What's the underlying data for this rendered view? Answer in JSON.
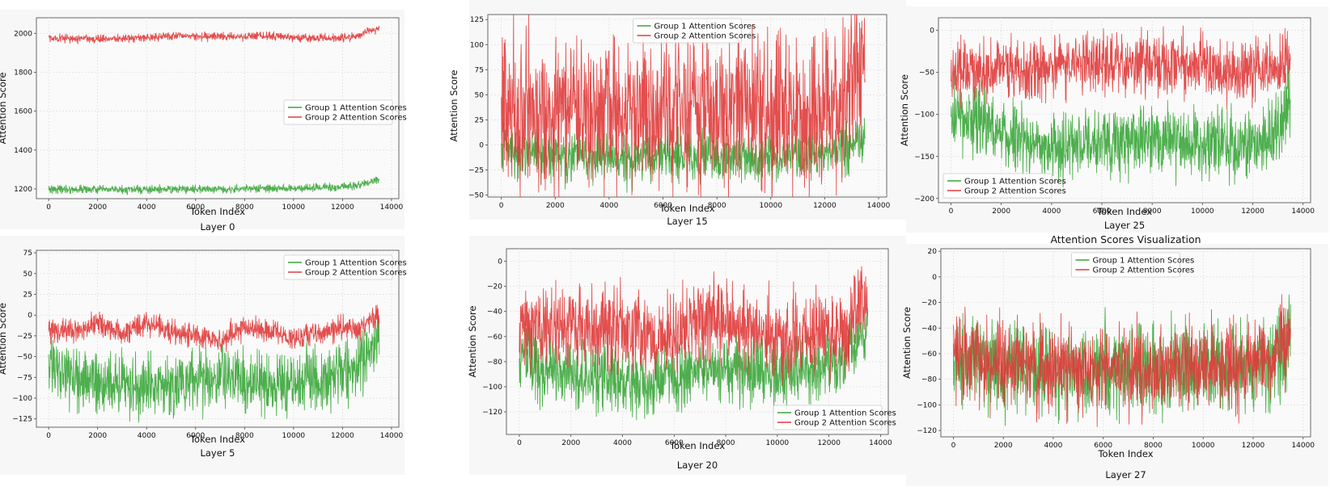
{
  "figure": {
    "background": "#ffffff"
  },
  "series_colors": {
    "group1": "#3aa63a",
    "group2": "#e03b3b"
  },
  "chart_data": [
    {
      "type": "line",
      "key": "layer0",
      "caption": "Layer 0",
      "title": "",
      "xlabel": "Token Index",
      "ylabel": "Attention Score",
      "xlim": [
        -500,
        14300
      ],
      "ylim": [
        1150,
        2080
      ],
      "xticks": [
        0,
        2000,
        4000,
        6000,
        8000,
        10000,
        12000,
        14000
      ],
      "yticks": [
        1200,
        1400,
        1600,
        1800,
        2000
      ],
      "legend": "center-right",
      "series": [
        {
          "name": "Group 1 Attention Scores",
          "color": "#3aa63a",
          "x": [
            0,
            1000,
            2000,
            3000,
            4000,
            5000,
            6000,
            7000,
            8000,
            9000,
            10000,
            11000,
            12000,
            12700,
            13000,
            13500
          ],
          "mean": [
            1200,
            1198,
            1197,
            1195,
            1196,
            1198,
            1200,
            1199,
            1201,
            1202,
            1203,
            1205,
            1210,
            1220,
            1232,
            1248
          ],
          "noise": 10
        },
        {
          "name": "Group 2 Attention Scores",
          "color": "#e03b3b",
          "x": [
            0,
            1000,
            2000,
            3000,
            4000,
            5000,
            6000,
            7000,
            8000,
            9000,
            10000,
            11000,
            12000,
            12700,
            13000,
            13500
          ],
          "mean": [
            1978,
            1973,
            1972,
            1975,
            1979,
            1985,
            1986,
            1982,
            1983,
            1988,
            1978,
            1974,
            1976,
            1990,
            2010,
            2028
          ],
          "noise": 10
        }
      ]
    },
    {
      "type": "line",
      "key": "layer15",
      "caption": "Layer 15",
      "title": "",
      "xlabel": "Token Index",
      "ylabel": "Attention Score",
      "xlim": [
        -500,
        14300
      ],
      "ylim": [
        -52,
        130
      ],
      "xticks": [
        0,
        2000,
        4000,
        6000,
        8000,
        10000,
        12000,
        14000
      ],
      "yticks": [
        -50,
        -25,
        0,
        25,
        50,
        75,
        100,
        125
      ],
      "legend": "top-center",
      "series": [
        {
          "name": "Group 1 Attention Scores",
          "color": "#3aa63a",
          "x": [
            0,
            1000,
            2000,
            3000,
            4000,
            5000,
            6000,
            7000,
            8000,
            9000,
            10000,
            11000,
            12000,
            12700,
            13000,
            13500
          ],
          "mean": [
            -5,
            -8,
            -10,
            -12,
            -15,
            -14,
            -12,
            -10,
            -12,
            -14,
            -12,
            -10,
            -8,
            -5,
            0,
            8
          ],
          "noise": 12
        },
        {
          "name": "Group 2 Attention Scores",
          "color": "#e03b3b",
          "x": [
            0,
            1000,
            2000,
            3000,
            4000,
            5000,
            6000,
            7000,
            8000,
            9000,
            10000,
            11000,
            12000,
            12700,
            13000,
            13500
          ],
          "mean": [
            35,
            38,
            36,
            37,
            35,
            34,
            35,
            36,
            34,
            35,
            33,
            32,
            32,
            30,
            75,
            80
          ],
          "noise": 38
        }
      ]
    },
    {
      "type": "line",
      "key": "layer25",
      "caption": "Layer 25",
      "title": "",
      "xlabel": "Token Index",
      "ylabel": "Attention Score",
      "xlim": [
        -500,
        14300
      ],
      "ylim": [
        -205,
        15
      ],
      "xticks": [
        0,
        2000,
        4000,
        6000,
        8000,
        10000,
        12000,
        14000
      ],
      "yticks": [
        -200,
        -150,
        -100,
        -50,
        0
      ],
      "legend": "bottom-left",
      "series": [
        {
          "name": "Group 1 Attention Scores",
          "color": "#3aa63a",
          "x": [
            0,
            1000,
            2000,
            3000,
            4000,
            5000,
            6000,
            7000,
            8000,
            9000,
            10000,
            11000,
            12000,
            12700,
            13000,
            13500
          ],
          "mean": [
            -95,
            -110,
            -125,
            -130,
            -140,
            -138,
            -132,
            -130,
            -128,
            -135,
            -138,
            -140,
            -142,
            -130,
            -115,
            -85
          ],
          "noise": 20
        },
        {
          "name": "Group 2 Attention Scores",
          "color": "#e03b3b",
          "x": [
            0,
            1000,
            2000,
            3000,
            4000,
            5000,
            6000,
            7000,
            8000,
            9000,
            10000,
            11000,
            12000,
            12700,
            13000,
            13500
          ],
          "mean": [
            -45,
            -48,
            -47,
            -45,
            -42,
            -40,
            -40,
            -39,
            -40,
            -42,
            -45,
            -48,
            -50,
            -48,
            -45,
            -38
          ],
          "noise": 18
        }
      ]
    },
    {
      "type": "line",
      "key": "layer5",
      "caption": "Layer 5",
      "title": "",
      "xlabel": "Token Index",
      "ylabel": "Attention Score",
      "xlim": [
        -500,
        14300
      ],
      "ylim": [
        -135,
        78
      ],
      "xticks": [
        0,
        2000,
        4000,
        6000,
        8000,
        10000,
        12000,
        14000
      ],
      "yticks": [
        -125,
        -100,
        -75,
        -50,
        -25,
        0,
        25,
        50,
        75
      ],
      "legend": "top-right",
      "series": [
        {
          "name": "Group 1 Attention Scores",
          "color": "#3aa63a",
          "x": [
            0,
            1000,
            2000,
            3000,
            4000,
            5000,
            6000,
            7000,
            8000,
            9000,
            10000,
            11000,
            12000,
            12700,
            13000,
            13500
          ],
          "mean": [
            -60,
            -75,
            -80,
            -85,
            -88,
            -82,
            -78,
            -75,
            -80,
            -82,
            -80,
            -78,
            -72,
            -60,
            -45,
            -30
          ],
          "noise": 18
        },
        {
          "name": "Group 2 Attention Scores",
          "color": "#e03b3b",
          "x": [
            0,
            1000,
            2000,
            3000,
            4000,
            5000,
            6000,
            7000,
            8000,
            9000,
            10000,
            11000,
            12000,
            12700,
            13000,
            13500
          ],
          "mean": [
            -20,
            -18,
            -10,
            -22,
            -10,
            -22,
            -25,
            -30,
            -15,
            -20,
            -28,
            -22,
            -15,
            -18,
            -10,
            0
          ],
          "noise": 7
        }
      ]
    },
    {
      "type": "line",
      "key": "layer20",
      "caption": "Layer 20",
      "title": "",
      "xlabel": "Token Index",
      "ylabel": "Attention Score",
      "xlim": [
        -500,
        14300
      ],
      "ylim": [
        -138,
        10
      ],
      "xticks": [
        0,
        2000,
        4000,
        6000,
        8000,
        10000,
        12000,
        14000
      ],
      "yticks": [
        -120,
        -100,
        -80,
        -60,
        -40,
        -20,
        0
      ],
      "legend": "bottom-right",
      "series": [
        {
          "name": "Group 1 Attention Scores",
          "color": "#3aa63a",
          "x": [
            0,
            1000,
            2000,
            3000,
            4000,
            5000,
            6000,
            7000,
            8000,
            9000,
            10000,
            11000,
            12000,
            12700,
            13000,
            13500
          ],
          "mean": [
            -75,
            -85,
            -90,
            -92,
            -95,
            -98,
            -92,
            -88,
            -85,
            -90,
            -88,
            -85,
            -82,
            -75,
            -65,
            -55
          ],
          "noise": 13
        },
        {
          "name": "Group 2 Attention Scores",
          "color": "#e03b3b",
          "x": [
            0,
            1000,
            2000,
            3000,
            4000,
            5000,
            6000,
            7000,
            8000,
            9000,
            10000,
            11000,
            12000,
            12700,
            13000,
            13500
          ],
          "mean": [
            -50,
            -55,
            -52,
            -54,
            -56,
            -58,
            -55,
            -52,
            -50,
            -58,
            -62,
            -60,
            -58,
            -55,
            -40,
            -30
          ],
          "noise": 16
        }
      ]
    },
    {
      "type": "line",
      "key": "layer27",
      "caption": "Layer 27",
      "title": "Attention Scores Visualization",
      "xlabel": "Token Index",
      "ylabel": "Attention Score",
      "xlim": [
        -500,
        14300
      ],
      "ylim": [
        -125,
        22
      ],
      "xticks": [
        0,
        2000,
        4000,
        6000,
        8000,
        10000,
        12000,
        14000
      ],
      "yticks": [
        -120,
        -100,
        -80,
        -60,
        -40,
        -20,
        0,
        20
      ],
      "legend": "top-center",
      "series": [
        {
          "name": "Group 1 Attention Scores",
          "color": "#3aa63a",
          "x": [
            0,
            1000,
            2000,
            3000,
            4000,
            5000,
            6000,
            7000,
            8000,
            9000,
            10000,
            11000,
            12000,
            12700,
            13000,
            13500
          ],
          "mean": [
            -65,
            -68,
            -70,
            -72,
            -74,
            -74,
            -73,
            -72,
            -71,
            -72,
            -71,
            -70,
            -70,
            -68,
            -60,
            -50
          ],
          "noise": 17
        },
        {
          "name": "Group 2 Attention Scores",
          "color": "#e03b3b",
          "x": [
            0,
            1000,
            2000,
            3000,
            4000,
            5000,
            6000,
            7000,
            8000,
            9000,
            10000,
            11000,
            12000,
            12700,
            13000,
            13500
          ],
          "mean": [
            -62,
            -66,
            -68,
            -70,
            -72,
            -72,
            -71,
            -70,
            -70,
            -71,
            -70,
            -68,
            -68,
            -65,
            -50,
            -40
          ],
          "noise": 17
        }
      ]
    }
  ]
}
